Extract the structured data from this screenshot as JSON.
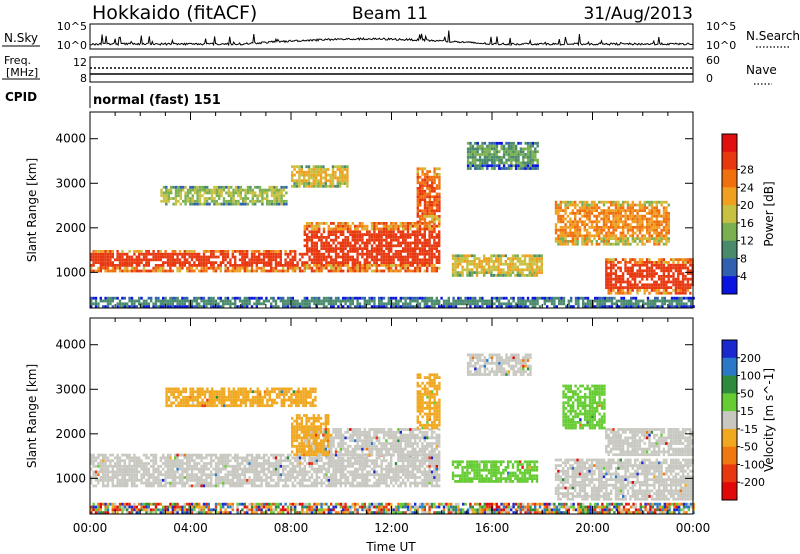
{
  "header": {
    "station": "Hokkaido (fitACF)",
    "beam": "Beam 11",
    "date": "31/Aug/2013"
  },
  "strip_labels": {
    "nsky": "N.Sky",
    "nsky_ticks": [
      "10^5",
      "10^0"
    ],
    "nsearch": "N.Search",
    "nsearch_ticks": [
      "10^5",
      "10^0"
    ],
    "freq_line1": "Freq.",
    "freq_line2": "[MHz]",
    "freq_ticks": [
      "12",
      "8"
    ],
    "nave": "Nave",
    "nave_ticks": [
      "60",
      "0"
    ],
    "cpid": "CPID",
    "cpid_value": "normal (fast) 151"
  },
  "chart_data": [
    {
      "type": "heatmap",
      "title": "",
      "ylabel": "Slant Range [km]",
      "xlabel": "",
      "x_ticks": [
        "00:00",
        "04:00",
        "08:00",
        "12:00",
        "16:00",
        "20:00",
        "00:00"
      ],
      "y_ticks": [
        1000,
        2000,
        3000,
        4000
      ],
      "ylim": [
        200,
        4600
      ],
      "xlim_hours": [
        0,
        24
      ],
      "colorbar": {
        "label": "Power [dB]",
        "tick_labels": [
          "4",
          "8",
          "12",
          "16",
          "20",
          "24",
          "28"
        ],
        "range": [
          0,
          32
        ],
        "colors": [
          "#0a14e0",
          "#3060b0",
          "#4a8a6c",
          "#7ab050",
          "#c8c040",
          "#f0a020",
          "#f07010",
          "#e83810",
          "#e01010"
        ]
      },
      "bands": [
        {
          "t": [
            0,
            8.5
          ],
          "r": [
            1000,
            1500
          ],
          "level": 30
        },
        {
          "t": [
            8.5,
            13.9
          ],
          "r": [
            1000,
            2100
          ],
          "level": 30
        },
        {
          "t": [
            13.0,
            13.9
          ],
          "r": [
            2100,
            3300
          ],
          "level": 28
        },
        {
          "t": [
            8.0,
            10.2
          ],
          "r": [
            2900,
            3400
          ],
          "level": 20
        },
        {
          "t": [
            2.8,
            7.8
          ],
          "r": [
            2500,
            2900
          ],
          "level": 16
        },
        {
          "t": [
            14.4,
            18.0
          ],
          "r": [
            900,
            1350
          ],
          "level": 20
        },
        {
          "t": [
            18.5,
            23.0
          ],
          "r": [
            1600,
            2600
          ],
          "level": 24
        },
        {
          "t": [
            20.5,
            24.0
          ],
          "r": [
            500,
            1300
          ],
          "level": 30
        },
        {
          "t": [
            15.0,
            17.8
          ],
          "r": [
            3300,
            3900
          ],
          "level": 12
        },
        {
          "t": [
            0,
            24
          ],
          "r": [
            200,
            400
          ],
          "level": 10
        }
      ]
    },
    {
      "type": "heatmap",
      "title": "",
      "ylabel": "Slant Range [km]",
      "xlabel": "Time UT",
      "x_ticks": [
        "00:00",
        "04:00",
        "08:00",
        "12:00",
        "16:00",
        "20:00",
        "00:00"
      ],
      "y_ticks": [
        1000,
        2000,
        3000,
        4000
      ],
      "ylim": [
        200,
        4600
      ],
      "xlim_hours": [
        0,
        24
      ],
      "colorbar": {
        "label": "Velocity [m s^-1]",
        "tick_labels": [
          "200",
          "100",
          "50",
          "15",
          "-15",
          "-50",
          "-100",
          "-200"
        ],
        "colors": [
          "#1a28d0",
          "#2a78c8",
          "#2e8a3c",
          "#66cc33",
          "#c8c8c0",
          "#f0a820",
          "#f07810",
          "#e83810",
          "#e00808"
        ]
      },
      "bands": [
        {
          "t": [
            0,
            13.9
          ],
          "r": [
            800,
            1500
          ],
          "level": "-15..15"
        },
        {
          "t": [
            8.5,
            13.9
          ],
          "r": [
            1500,
            2100
          ],
          "level": "-15..15"
        },
        {
          "t": [
            8.0,
            9.5
          ],
          "r": [
            1500,
            2400
          ],
          "level": "-50"
        },
        {
          "t": [
            13.0,
            13.9
          ],
          "r": [
            2100,
            3300
          ],
          "level": "-50"
        },
        {
          "t": [
            3.0,
            9.0
          ],
          "r": [
            2600,
            3000
          ],
          "level": "-50"
        },
        {
          "t": [
            14.4,
            17.8
          ],
          "r": [
            900,
            1400
          ],
          "level": "50"
        },
        {
          "t": [
            18.8,
            20.5
          ],
          "r": [
            2100,
            3100
          ],
          "level": "50"
        },
        {
          "t": [
            18.5,
            24.0
          ],
          "r": [
            500,
            1400
          ],
          "level": "-15..15"
        },
        {
          "t": [
            20.5,
            24.0
          ],
          "r": [
            1500,
            2100
          ],
          "level": "-15..15"
        },
        {
          "t": [
            15.0,
            17.5
          ],
          "r": [
            3300,
            3800
          ],
          "level": "-15..15"
        },
        {
          "t": [
            0,
            24
          ],
          "r": [
            200,
            400
          ],
          "level": "mixed"
        }
      ]
    }
  ]
}
